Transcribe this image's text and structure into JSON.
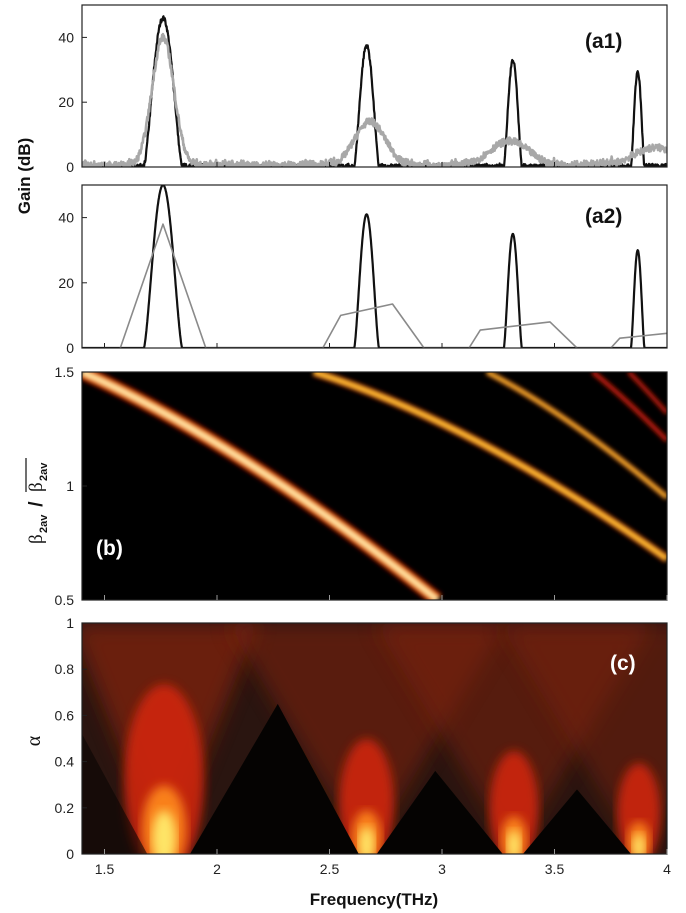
{
  "figure": {
    "xlabel": "Frequency(THz)",
    "gain_ylabel": "Gain (dB)",
    "beta_ylabel_num": "β",
    "beta_ylabel_sub": "2av",
    "beta_ylabel_sep": " / ",
    "alpha_ylabel": "α",
    "x_ticks": [
      "1.5",
      "2",
      "2.5",
      "3",
      "3.5",
      "4"
    ]
  },
  "chart_data": [
    {
      "id": "a1",
      "type": "line",
      "panel_label": "(a1)",
      "ylabel": "Gain (dB)",
      "xlim": [
        1.4,
        4.0
      ],
      "ylim": [
        0,
        50
      ],
      "yticks": [
        "0",
        "20",
        "40"
      ],
      "colors": {
        "black": "#111111",
        "grey": "#a8a8a8"
      },
      "series": [
        {
          "color": "black",
          "peaks": [
            {
              "x": 1.76,
              "y": 46,
              "w": 0.085
            },
            {
              "x": 2.665,
              "y": 37.5,
              "w": 0.055
            },
            {
              "x": 3.315,
              "y": 33,
              "w": 0.04
            },
            {
              "x": 3.87,
              "y": 29.5,
              "w": 0.03
            }
          ]
        },
        {
          "color": "grey",
          "peaks": [
            {
              "x": 1.76,
              "y": 40,
              "w": 0.12
            },
            {
              "x": 2.68,
              "y": 14,
              "w": 0.17
            },
            {
              "x": 3.3,
              "y": 8,
              "w": 0.22
            },
            {
              "x": 3.95,
              "y": 6,
              "w": 0.25
            }
          ]
        }
      ]
    },
    {
      "id": "a2",
      "type": "line",
      "panel_label": "(a2)",
      "ylabel": "",
      "xlim": [
        1.4,
        4.0
      ],
      "ylim": [
        0,
        50
      ],
      "yticks": [
        "0",
        "20",
        "40"
      ],
      "colors": {
        "black": "#111111",
        "grey": "#8a8a8a"
      },
      "series": [
        {
          "color": "black",
          "peaks": [
            {
              "x": 1.76,
              "y": 50,
              "w": 0.085
            },
            {
              "x": 2.665,
              "y": 41,
              "w": 0.055
            },
            {
              "x": 3.315,
              "y": 35,
              "w": 0.04
            },
            {
              "x": 3.87,
              "y": 30,
              "w": 0.03
            }
          ]
        },
        {
          "color": "grey",
          "polyline": [
            [
              1.57,
              0
            ],
            [
              1.76,
              38
            ],
            [
              1.95,
              0
            ],
            [
              2.47,
              0
            ],
            [
              2.55,
              10
            ],
            [
              2.78,
              13.5
            ],
            [
              2.92,
              0
            ],
            [
              3.12,
              0
            ],
            [
              3.17,
              5.5
            ],
            [
              3.48,
              8
            ],
            [
              3.6,
              0
            ],
            [
              3.75,
              0
            ],
            [
              3.79,
              3
            ],
            [
              4.0,
              4.5
            ]
          ]
        }
      ]
    },
    {
      "id": "b",
      "type": "heatmap",
      "panel_label": "(b)",
      "ylabel": "β2av / β2av",
      "xlim": [
        1.4,
        4.0
      ],
      "ylim": [
        0.5,
        1.5
      ],
      "yticks": [
        "0.5",
        "1",
        "1.5"
      ],
      "colormap": [
        "#000000",
        "#7a1005",
        "#c8200c",
        "#ff7a1a",
        "#ffd23a",
        "#fffbe0"
      ],
      "bands": [
        {
          "order": 1,
          "intensity": 1.0,
          "width": 0.085,
          "start": [
            1.4,
            1.5
          ],
          "end": [
            2.98,
            0.5
          ]
        },
        {
          "order": 2,
          "intensity": 0.85,
          "width": 0.05,
          "start": [
            2.43,
            1.5
          ],
          "end": [
            4.0,
            0.68
          ]
        },
        {
          "order": 3,
          "intensity": 0.7,
          "width": 0.035,
          "start": [
            3.2,
            1.5
          ],
          "end": [
            4.0,
            0.95
          ]
        },
        {
          "order": 4,
          "intensity": 0.45,
          "width": 0.028,
          "start": [
            3.67,
            1.5
          ],
          "end": [
            4.0,
            1.2
          ]
        },
        {
          "order": 5,
          "intensity": 0.3,
          "width": 0.025,
          "start": [
            3.83,
            1.5
          ],
          "end": [
            4.0,
            1.32
          ]
        }
      ]
    },
    {
      "id": "c",
      "type": "heatmap",
      "panel_label": "(c)",
      "ylabel": "α",
      "xlim": [
        1.4,
        4.0
      ],
      "ylim": [
        0,
        1
      ],
      "yticks": [
        "0",
        "0.2",
        "0.4",
        "0.6",
        "0.8",
        "1"
      ],
      "colormap": [
        "#000000",
        "#3b1c14",
        "#7a2410",
        "#d5250f",
        "#ff8a1c",
        "#fff070"
      ],
      "lobes": [
        {
          "x": 1.765,
          "intensity": 1.0,
          "halfwidth_at_top": 0.42
        },
        {
          "x": 2.665,
          "intensity": 0.55,
          "halfwidth_at_top": 0.62
        },
        {
          "x": 3.32,
          "intensity": 0.45,
          "halfwidth_at_top": 0.62
        },
        {
          "x": 3.875,
          "intensity": 0.35,
          "halfwidth_at_top": 0.62
        }
      ],
      "dark_triangles": [
        {
          "apex": [
            2.27,
            0.65
          ],
          "base": [
            1.88,
            2.63
          ]
        },
        {
          "apex": [
            2.97,
            0.36
          ],
          "base": [
            2.71,
            3.27
          ]
        },
        {
          "apex": [
            3.6,
            0.28
          ],
          "base": [
            3.36,
            3.84
          ]
        }
      ]
    }
  ]
}
